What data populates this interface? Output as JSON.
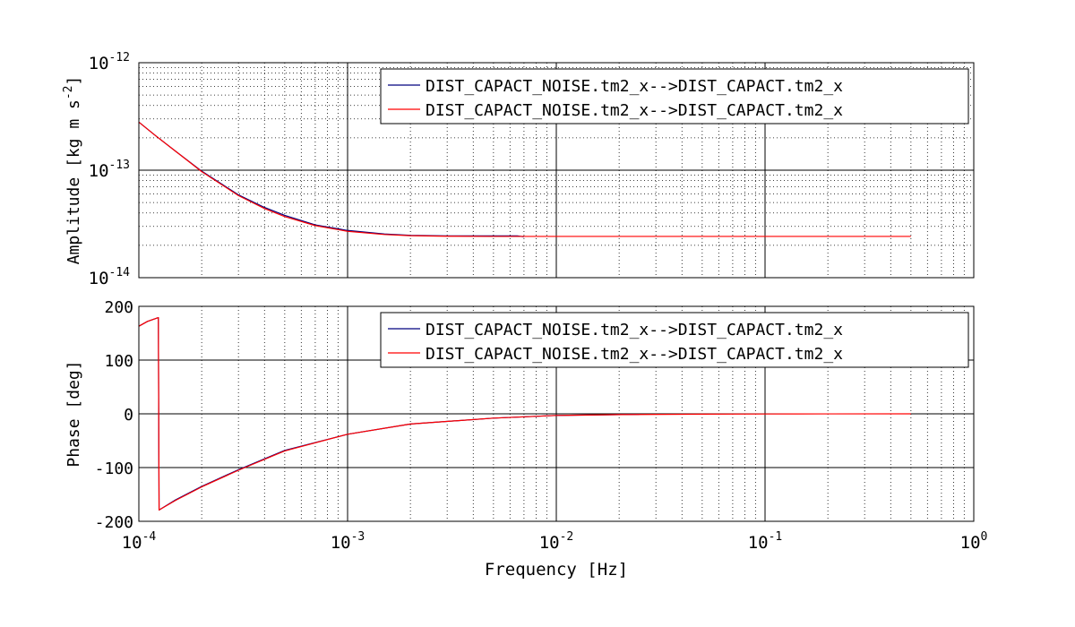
{
  "chart_data": [
    {
      "type": "line",
      "xscale": "log",
      "yscale": "log",
      "xlim": [
        0.0001,
        1
      ],
      "ylim": [
        1e-14,
        1e-12
      ],
      "grid": true,
      "xlabel": "",
      "ylabel": "Amplitude   [kg m s^-2]",
      "ylabel_main": "Amplitude   [kg m s",
      "ylabel_exp": "-2",
      "ylabel_tail": "]",
      "y_ticks": [
        {
          "value": 1e-14,
          "base": "10",
          "exp": "-14"
        },
        {
          "value": 1e-13,
          "base": "10",
          "exp": "-13"
        },
        {
          "value": 1e-12,
          "base": "10",
          "exp": "-12"
        }
      ],
      "legend_position": "top-right",
      "series": [
        {
          "name": "DIST_CAPACT_NOISE.tm2_x-->DIST_CAPACT.tm2_x",
          "color": "#00007f",
          "x": [
            0.0001,
            0.00012,
            0.00015,
            0.0002,
            0.0003,
            0.0004,
            0.0005,
            0.0007,
            0.001,
            0.0015,
            0.002,
            0.003,
            0.005,
            0.0065,
            0.007
          ],
          "y": [
            2.8e-13,
            2.1e-13,
            1.5e-13,
            9.8e-14,
            5.9e-14,
            4.5e-14,
            3.8e-14,
            3.1e-14,
            2.75e-14,
            2.55e-14,
            2.48e-14,
            2.45e-14,
            2.45e-14,
            2.45e-14,
            2.4e-14
          ]
        },
        {
          "name": "DIST_CAPACT_NOISE.tm2_x-->DIST_CAPACT.tm2_x",
          "color": "#ff0000",
          "x": [
            0.0001,
            0.00012,
            0.00015,
            0.0002,
            0.0003,
            0.0004,
            0.0005,
            0.0007,
            0.001,
            0.0015,
            0.002,
            0.003,
            0.005,
            0.01,
            0.02,
            0.05,
            0.1,
            0.2,
            0.5
          ],
          "y": [
            2.8e-13,
            2.1e-13,
            1.5e-13,
            9.7e-14,
            5.8e-14,
            4.4e-14,
            3.7e-14,
            3.05e-14,
            2.7e-14,
            2.52e-14,
            2.46e-14,
            2.43e-14,
            2.42e-14,
            2.42e-14,
            2.42e-14,
            2.42e-14,
            2.42e-14,
            2.42e-14,
            2.42e-14
          ]
        }
      ]
    },
    {
      "type": "line",
      "xscale": "log",
      "yscale": "linear",
      "xlim": [
        0.0001,
        1
      ],
      "ylim": [
        -200,
        200
      ],
      "grid": true,
      "xlabel": "Frequency   [Hz]",
      "ylabel": "Phase   [deg]",
      "x_ticks": [
        {
          "value": 0.0001,
          "base": "10",
          "exp": "-4"
        },
        {
          "value": 0.001,
          "base": "10",
          "exp": "-3"
        },
        {
          "value": 0.01,
          "base": "10",
          "exp": "-2"
        },
        {
          "value": 0.1,
          "base": "10",
          "exp": "-1"
        },
        {
          "value": 1,
          "base": "10",
          "exp": "0"
        }
      ],
      "y_ticks": [
        -200,
        -100,
        0,
        100,
        200
      ],
      "legend_position": "top-right",
      "series": [
        {
          "name": "DIST_CAPACT_NOISE.tm2_x-->DIST_CAPACT.tm2_x",
          "color": "#00007f",
          "x": [
            0.0001,
            0.00011,
            0.000124,
            0.000125,
            0.00015,
            0.0002,
            0.0003,
            0.0005,
            0.001,
            0.002,
            0.005,
            0.01,
            0.025
          ],
          "y": [
            163,
            172,
            179,
            -179,
            -160,
            -135,
            -104,
            -68,
            -38,
            -19,
            -8,
            -3,
            -1
          ]
        },
        {
          "name": "DIST_CAPACT_NOISE.tm2_x-->DIST_CAPACT.tm2_x",
          "color": "#ff0000",
          "x": [
            0.0001,
            0.00011,
            0.000124,
            0.000125,
            0.00015,
            0.0002,
            0.0003,
            0.0005,
            0.001,
            0.002,
            0.005,
            0.01,
            0.02,
            0.05,
            0.1,
            0.2,
            0.5
          ],
          "y": [
            163,
            172,
            179,
            -179,
            -161,
            -136,
            -105,
            -69,
            -38,
            -19,
            -8,
            -3,
            -1.5,
            -0.6,
            -0.3,
            -0.1,
            0
          ]
        }
      ]
    }
  ]
}
